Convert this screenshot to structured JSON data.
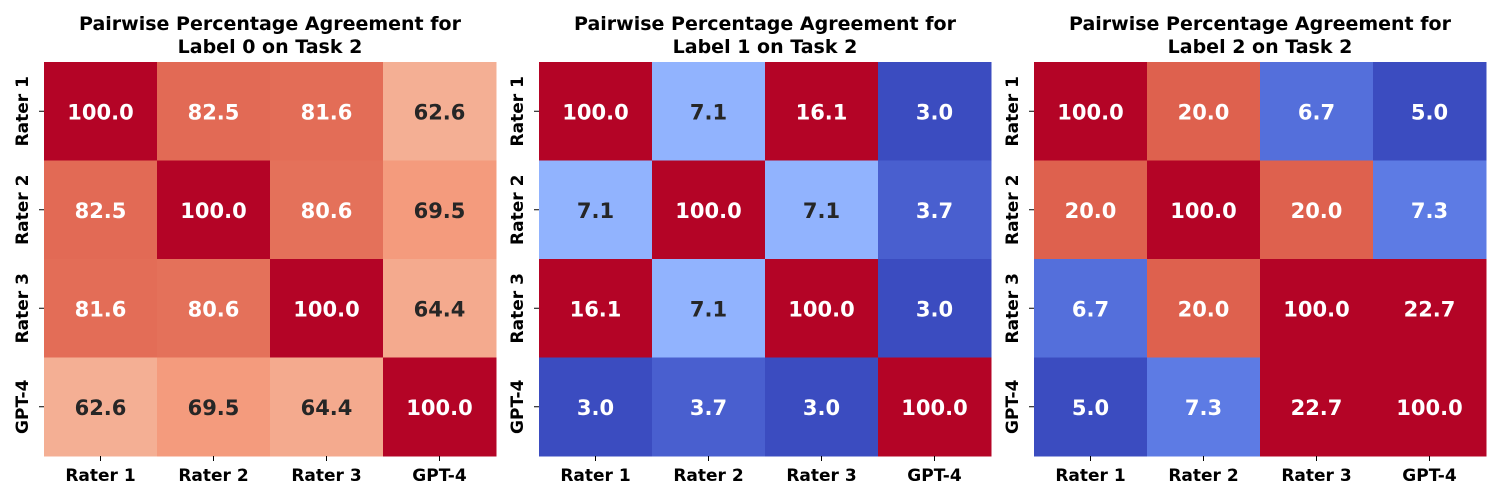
{
  "chart_data": [
    {
      "type": "heatmap",
      "title_lines": [
        "Pairwise Percentage Agreement for",
        "Label 0 on Task 2"
      ],
      "x_labels": [
        "Rater 1",
        "Rater 2",
        "Rater 3",
        "GPT-4"
      ],
      "y_labels": [
        "Rater 1",
        "Rater 2",
        "Rater 3",
        "GPT-4"
      ],
      "values": [
        [
          100.0,
          82.5,
          81.6,
          62.6
        ],
        [
          82.5,
          100.0,
          80.6,
          69.5
        ],
        [
          81.6,
          80.6,
          100.0,
          64.4
        ],
        [
          62.6,
          69.5,
          64.4,
          100.0
        ]
      ],
      "value_labels": [
        [
          "100.0",
          "82.5",
          "81.6",
          "62.6"
        ],
        [
          "82.5",
          "100.0",
          "80.6",
          "69.5"
        ],
        [
          "81.6",
          "80.6",
          "100.0",
          "64.4"
        ],
        [
          "62.6",
          "69.5",
          "64.4",
          "100.0"
        ]
      ],
      "colormap": "coolwarm",
      "color_range": [
        0,
        100
      ],
      "colorbar": false
    },
    {
      "type": "heatmap",
      "title_lines": [
        "Pairwise Percentage Agreement for",
        "Label 1 on Task 2"
      ],
      "x_labels": [
        "Rater 1",
        "Rater 2",
        "Rater 3",
        "GPT-4"
      ],
      "y_labels": [
        "Rater 1",
        "Rater 2",
        "Rater 3",
        "GPT-4"
      ],
      "values": [
        [
          100.0,
          7.1,
          16.1,
          3.0
        ],
        [
          7.1,
          100.0,
          7.1,
          3.7
        ],
        [
          16.1,
          7.1,
          100.0,
          3.0
        ],
        [
          3.0,
          3.7,
          3.0,
          100.0
        ]
      ],
      "value_labels": [
        [
          "100.0",
          "7.1",
          "16.1",
          "3.0"
        ],
        [
          "7.1",
          "100.0",
          "7.1",
          "3.7"
        ],
        [
          "16.1",
          "7.1",
          "100.0",
          "3.0"
        ],
        [
          "3.0",
          "3.7",
          "3.0",
          "100.0"
        ]
      ],
      "colormap": "coolwarm",
      "color_range": [
        3.0,
        16.1
      ],
      "colorbar": false
    },
    {
      "type": "heatmap",
      "title_lines": [
        "Pairwise Percentage Agreement for",
        "Label 2 on Task 2"
      ],
      "x_labels": [
        "Rater 1",
        "Rater 2",
        "Rater 3",
        "GPT-4"
      ],
      "y_labels": [
        "Rater 1",
        "Rater 2",
        "Rater 3",
        "GPT-4"
      ],
      "values": [
        [
          100.0,
          20.0,
          6.7,
          5.0
        ],
        [
          20.0,
          100.0,
          20.0,
          7.3
        ],
        [
          6.7,
          20.0,
          100.0,
          22.7
        ],
        [
          5.0,
          7.3,
          22.7,
          100.0
        ]
      ],
      "value_labels": [
        [
          "100.0",
          "20.0",
          "6.7",
          "5.0"
        ],
        [
          "20.0",
          "100.0",
          "20.0",
          "7.3"
        ],
        [
          "6.7",
          "20.0",
          "100.0",
          "22.7"
        ],
        [
          "5.0",
          "7.3",
          "22.7",
          "100.0"
        ]
      ],
      "colormap": "coolwarm",
      "color_range": [
        5.0,
        22.7
      ],
      "colorbar": false
    }
  ]
}
